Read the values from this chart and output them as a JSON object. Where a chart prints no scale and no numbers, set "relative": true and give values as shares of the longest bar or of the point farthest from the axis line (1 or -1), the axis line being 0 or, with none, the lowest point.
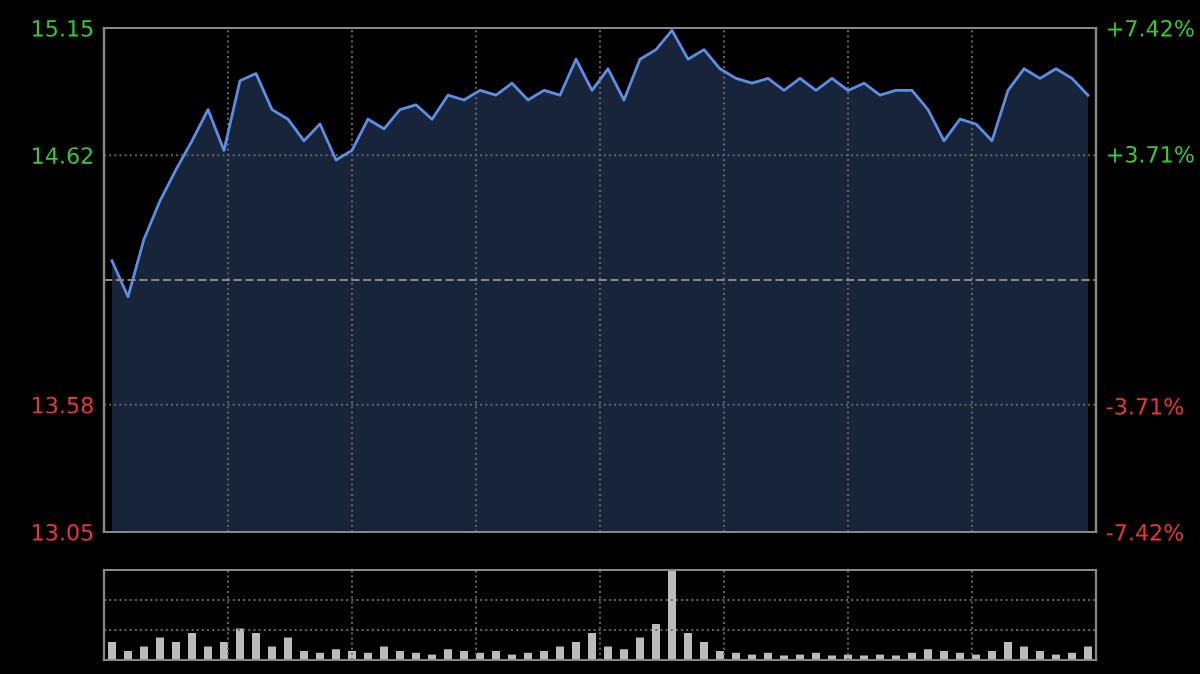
{
  "chart_data": [
    {
      "type": "area",
      "categories": [
        null,
        null,
        null,
        null,
        null,
        null,
        null,
        null,
        null,
        null,
        null,
        null,
        null,
        null,
        null,
        null,
        null,
        null,
        null,
        null,
        null,
        null,
        null,
        null,
        null,
        null,
        null,
        null,
        null,
        null,
        null,
        null,
        null,
        null,
        null,
        null,
        null,
        null,
        null,
        null,
        null,
        null,
        null,
        null,
        null,
        null,
        null,
        null,
        null,
        null,
        null,
        null,
        null,
        null,
        null,
        null,
        null,
        null,
        null,
        null,
        null,
        null
      ],
      "series": [
        {
          "color": "#5b8ee6",
          "values": [
            14.18,
            14.03,
            14.27,
            14.43,
            14.56,
            14.68,
            14.81,
            14.64,
            14.93,
            14.96,
            14.81,
            14.77,
            14.68,
            14.75,
            14.6,
            14.64,
            14.77,
            14.73,
            14.81,
            14.83,
            14.77,
            14.87,
            14.85,
            14.89,
            14.87,
            14.92,
            14.85,
            14.89,
            14.87,
            15.02,
            14.89,
            14.98,
            14.85,
            15.02,
            15.06,
            15.14,
            15.02,
            15.06,
            14.98,
            14.94,
            14.92,
            14.94,
            14.89,
            14.94,
            14.89,
            14.94,
            14.89,
            14.92,
            14.87,
            14.89,
            14.89,
            14.81,
            14.68,
            14.77,
            14.75,
            14.68,
            14.89,
            14.98,
            14.94,
            14.98,
            14.94,
            14.87
          ]
        }
      ],
      "ylim": [
        13.05,
        15.15
      ],
      "yticks": [
        13.05,
        13.58,
        14.62,
        15.15
      ],
      "y2lim": [
        -7.42,
        7.42
      ],
      "y2ticks": [
        {
          "value": -7.42,
          "label": "-7.42%"
        },
        {
          "value": -3.71,
          "label": "-3.71%"
        },
        {
          "value": 3.71,
          "label": "+3.71%"
        },
        {
          "value": 7.42,
          "label": "+7.42%"
        }
      ],
      "ref_lines": [
        {
          "axis": "y",
          "value": 14.1,
          "label": null,
          "color": "#888888",
          "line_style": "dashed"
        }
      ],
      "grid": true,
      "legend": false
    },
    {
      "type": "bar",
      "relative": true,
      "grid": true,
      "categories": [
        null,
        null,
        null,
        null,
        null,
        null,
        null,
        null,
        null,
        null,
        null,
        null,
        null,
        null,
        null,
        null,
        null,
        null,
        null,
        null,
        null,
        null,
        null,
        null,
        null,
        null,
        null,
        null,
        null,
        null,
        null,
        null,
        null,
        null,
        null,
        null,
        null,
        null,
        null,
        null,
        null,
        null,
        null,
        null,
        null,
        null,
        null,
        null,
        null,
        null,
        null,
        null,
        null,
        null,
        null,
        null,
        null,
        null,
        null,
        null,
        null,
        null
      ],
      "series": [
        {
          "color": "#bbbbbb",
          "values": [
            0.2,
            0.1,
            0.15,
            0.25,
            0.2,
            0.3,
            0.15,
            0.2,
            0.35,
            0.3,
            0.15,
            0.25,
            0.1,
            0.08,
            0.12,
            0.1,
            0.08,
            0.15,
            0.1,
            0.08,
            0.06,
            0.12,
            0.1,
            0.08,
            0.1,
            0.06,
            0.08,
            0.1,
            0.15,
            0.2,
            0.3,
            0.15,
            0.12,
            0.25,
            0.4,
            1.0,
            0.3,
            0.2,
            0.1,
            0.08,
            0.06,
            0.08,
            0.05,
            0.06,
            0.08,
            0.05,
            0.06,
            0.05,
            0.06,
            0.05,
            0.08,
            0.12,
            0.1,
            0.08,
            0.06,
            0.1,
            0.2,
            0.15,
            0.1,
            0.06,
            0.08,
            0.15
          ]
        }
      ]
    }
  ]
}
